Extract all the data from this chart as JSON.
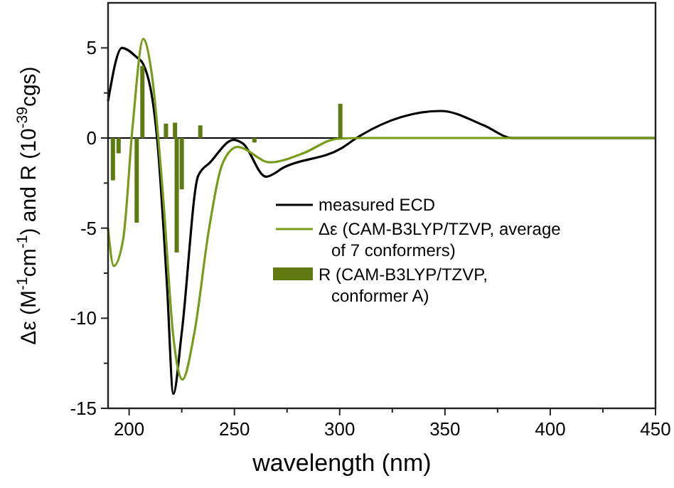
{
  "chart_data": {
    "type": "line",
    "xlabel": "wavelength (nm)",
    "ylabel": "Δε (M$^{-1}$cm$^{-1}$) and R (10$^{-39}$cgs)",
    "xlim": [
      190,
      450
    ],
    "ylim": [
      -15,
      7.5
    ],
    "xticks": [
      200,
      {
        "value": 225,
        "label": null
      },
      250,
      {
        "value": 275,
        "label": null
      },
      300,
      {
        "value": 325,
        "label": null
      },
      350,
      {
        "value": 375,
        "label": null
      },
      400,
      {
        "value": 425,
        "label": null
      },
      450
    ],
    "yticks": [
      -15,
      {
        "value": -12.5,
        "label": null
      },
      -10,
      {
        "value": -7.5,
        "label": null
      },
      -5,
      {
        "value": -2.5,
        "label": null
      },
      0,
      {
        "value": 2.5,
        "label": null
      },
      5
    ],
    "ref_lines": [
      {
        "axis": "y",
        "value": 0,
        "color": "#000000"
      }
    ],
    "legend": "right",
    "series": [
      {
        "name": "measured ECD",
        "color": "#000000",
        "x": [
          190,
          196.6,
          203.4,
          206.7,
          213.5,
          218,
          221,
          225,
          232.8,
          238.5,
          249.6,
          254,
          265,
          274,
          301,
          308,
          348,
          368.5,
          382,
          450
        ],
        "values": [
          2.05,
          5.0,
          4.5,
          4.1,
          -0.3,
          -8.2,
          -14.2,
          -10.8,
          -2.1,
          -1.35,
          -0.1,
          -0.3,
          -2.15,
          -1.6,
          -0.56,
          0,
          1.5,
          0.7,
          0,
          0
        ]
      },
      {
        "name": "Δε (CAM-B3LYP/TZVP, average of 7 conformers)",
        "type": "line",
        "color": "#7a9a1a",
        "x": [
          190,
          192.7,
          197.2,
          201.7,
          206.7,
          210.7,
          216.3,
          220.8,
          225.3,
          231,
          238,
          244.6,
          251.4,
          267,
          282.6,
          298.4,
          310,
          450
        ],
        "values": [
          -5.0,
          -7.1,
          -5.6,
          0.7,
          5.5,
          3.6,
          -3.5,
          -10.8,
          -13.4,
          -10.8,
          -5.0,
          -1.35,
          -0.5,
          -1.35,
          -0.85,
          -0.05,
          0,
          0
        ]
      },
      {
        "name": "R (CAM-B3LYP/TZVP, conformer A)",
        "type": "bar",
        "color": "#5f7a10",
        "x": [
          192.3,
          195,
          203.6,
          206.3,
          217.5,
          221.8,
          222.6,
          225,
          233.8,
          259.5,
          300.3
        ],
        "values": [
          -2.35,
          -0.85,
          -4.7,
          4.0,
          0.8,
          0.85,
          -6.35,
          -2.85,
          0.7,
          -0.25,
          1.9
        ]
      }
    ]
  }
}
